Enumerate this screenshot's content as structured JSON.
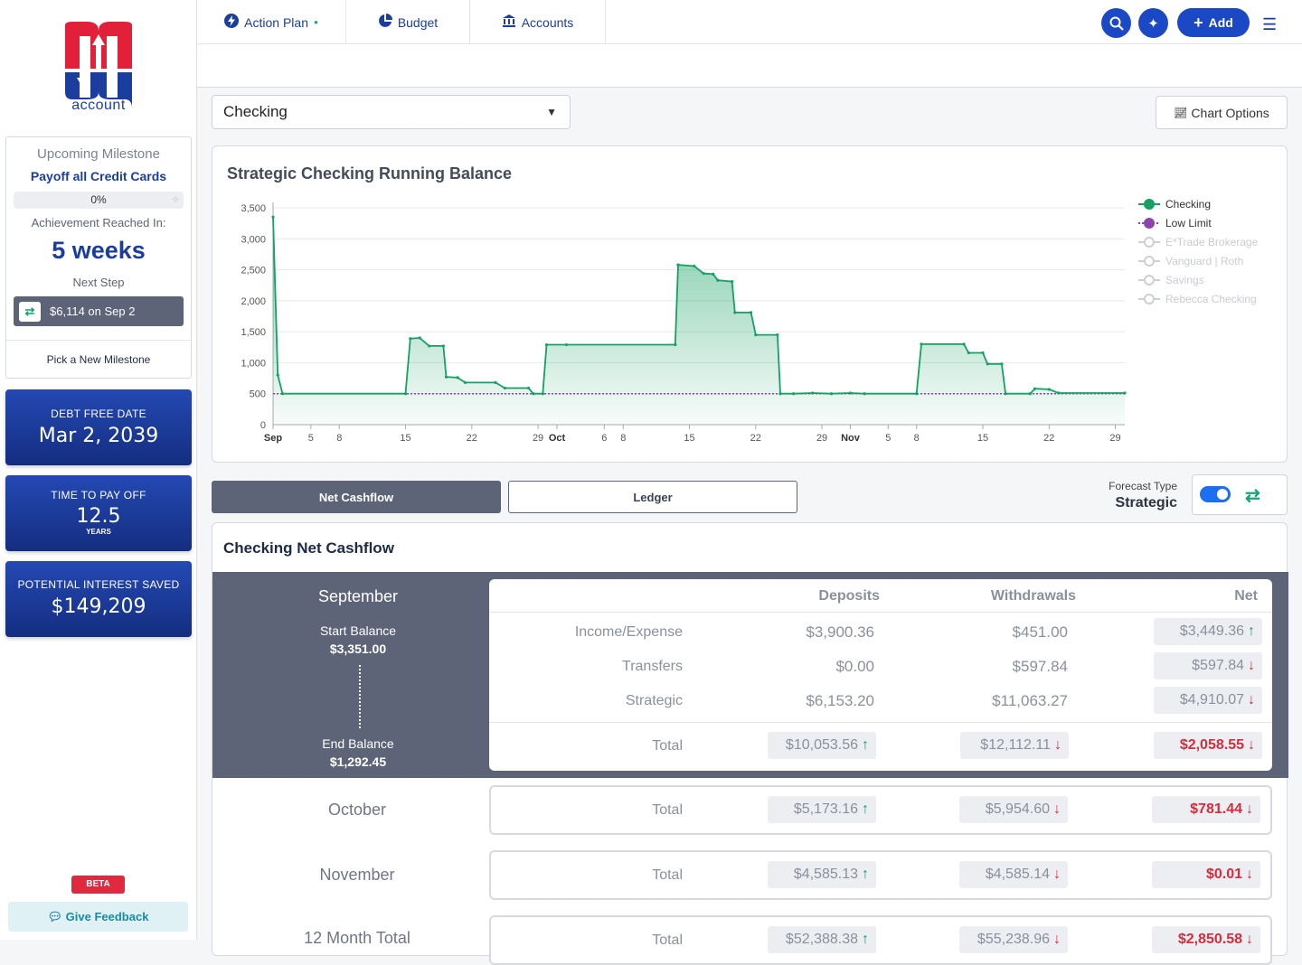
{
  "brand": {
    "logo_text": "account"
  },
  "milestone": {
    "title": "Upcoming Milestone",
    "name": "Payoff all Credit Cards",
    "progress_label": "0%",
    "progress": 0,
    "reach_label": "Achievement Reached In:",
    "reach_value": "5 weeks",
    "next_label": "Next Step",
    "next_step": "$6,114 on Sep 2",
    "pick": "Pick a New Milestone"
  },
  "stats": {
    "debt_free_label": "DEBT FREE DATE",
    "debt_free_value": "Mar 2, 2039",
    "payoff_label": "TIME TO PAY OFF",
    "payoff_value": "12.5",
    "payoff_unit": "YEARS",
    "interest_label": "POTENTIAL INTEREST SAVED",
    "interest_value": "$149,209"
  },
  "badges": {
    "beta": "BETA",
    "feedback": "Give Feedback"
  },
  "nav": {
    "tabs": [
      {
        "label": "Action Plan",
        "icon": "bolt-icon"
      },
      {
        "label": "Budget",
        "icon": "pie-chart-icon"
      },
      {
        "label": "Accounts",
        "icon": "bank-icon"
      }
    ],
    "add_label": "Add"
  },
  "account_select": {
    "value": "Checking"
  },
  "chart_options_label": "Chart Options",
  "chart_data": {
    "type": "area",
    "title": "Strategic Checking Running Balance",
    "ylim": [
      0,
      3500
    ],
    "yticks": [
      0,
      500,
      1000,
      1500,
      2000,
      2500,
      3000,
      3500
    ],
    "xticks": [
      {
        "day": 0,
        "label": "Sep",
        "bold": true
      },
      {
        "day": 4,
        "label": "5"
      },
      {
        "day": 7,
        "label": "8"
      },
      {
        "day": 14,
        "label": "15"
      },
      {
        "day": 21,
        "label": "22"
      },
      {
        "day": 28,
        "label": "29"
      },
      {
        "day": 30,
        "label": "Oct",
        "bold": true
      },
      {
        "day": 35,
        "label": "6"
      },
      {
        "day": 37,
        "label": "8"
      },
      {
        "day": 44,
        "label": "15"
      },
      {
        "day": 51,
        "label": "22"
      },
      {
        "day": 58,
        "label": "29"
      },
      {
        "day": 61,
        "label": "Nov",
        "bold": true
      },
      {
        "day": 65,
        "label": "5"
      },
      {
        "day": 68,
        "label": "8"
      },
      {
        "day": 75,
        "label": "15"
      },
      {
        "day": 82,
        "label": "22"
      },
      {
        "day": 89,
        "label": "29"
      }
    ],
    "x_days": 90,
    "series": [
      {
        "name": "Checking",
        "color": "#16a064",
        "values": [
          [
            0,
            3351
          ],
          [
            0.5,
            800
          ],
          [
            1,
            500
          ],
          [
            14,
            500
          ],
          [
            14.5,
            1390
          ],
          [
            15.5,
            1400
          ],
          [
            16.5,
            1270
          ],
          [
            18,
            1270
          ],
          [
            18.3,
            770
          ],
          [
            19.5,
            760
          ],
          [
            20.3,
            680
          ],
          [
            23.5,
            680
          ],
          [
            24.5,
            590
          ],
          [
            27,
            590
          ],
          [
            27.5,
            500
          ],
          [
            28.5,
            500
          ],
          [
            28.9,
            1290
          ],
          [
            31,
            1290
          ],
          [
            42.5,
            1290
          ],
          [
            42.8,
            2580
          ],
          [
            44.5,
            2560
          ],
          [
            45.5,
            2440
          ],
          [
            46.5,
            2430
          ],
          [
            47,
            2330
          ],
          [
            48.5,
            2310
          ],
          [
            48.8,
            1810
          ],
          [
            50.5,
            1810
          ],
          [
            51,
            1450
          ],
          [
            53.3,
            1450
          ],
          [
            53.6,
            500
          ],
          [
            55,
            500
          ],
          [
            57,
            510
          ],
          [
            59,
            500
          ],
          [
            61,
            510
          ],
          [
            62.5,
            500
          ],
          [
            68,
            500
          ],
          [
            68.5,
            1300
          ],
          [
            73,
            1300
          ],
          [
            73.5,
            1160
          ],
          [
            75,
            1160
          ],
          [
            75.5,
            980
          ],
          [
            77,
            980
          ],
          [
            77.4,
            500
          ],
          [
            80,
            500
          ],
          [
            80.5,
            580
          ],
          [
            82,
            570
          ],
          [
            83,
            510
          ],
          [
            90,
            510
          ]
        ]
      },
      {
        "name": "Low Limit",
        "color": "#8e44ad",
        "values": [
          [
            0,
            500
          ],
          [
            90,
            500
          ]
        ]
      }
    ],
    "legend": [
      "Checking",
      "Low Limit",
      "E*Trade Brokerage",
      "Vanguard | Roth",
      "Savings",
      "Rebecca Checking"
    ],
    "legend_position": "right"
  },
  "view_toggle": {
    "net_cashflow": "Net Cashflow",
    "ledger": "Ledger"
  },
  "forecast": {
    "label": "Forecast Type",
    "value": "Strategic"
  },
  "cashflow": {
    "title": "Checking Net Cashflow",
    "headers": {
      "deposits": "Deposits",
      "withdrawals": "Withdrawals",
      "net": "Net"
    },
    "september": {
      "name": "September",
      "start_label": "Start Balance",
      "start_value": "$3,351.00",
      "end_label": "End Balance",
      "end_value": "$1,292.45",
      "rows": [
        {
          "label": "Income/Expense",
          "deposits": "$3,900.36",
          "withdrawals": "$451.00",
          "net": "$3,449.36",
          "dir": "up"
        },
        {
          "label": "Transfers",
          "deposits": "$0.00",
          "withdrawals": "$597.84",
          "net": "$597.84",
          "dir": "down"
        },
        {
          "label": "Strategic",
          "deposits": "$6,153.20",
          "withdrawals": "$11,063.27",
          "net": "$4,910.07",
          "dir": "down"
        }
      ],
      "total": {
        "label": "Total",
        "deposits": "$10,053.56",
        "withdrawals": "$12,112.11",
        "net": "$2,058.55"
      }
    },
    "months": [
      {
        "name": "October",
        "label": "Total",
        "deposits": "$5,173.16",
        "withdrawals": "$5,954.60",
        "net": "$781.44"
      },
      {
        "name": "November",
        "label": "Total",
        "deposits": "$4,585.13",
        "withdrawals": "$4,585.14",
        "net": "$0.01"
      },
      {
        "name": "12 Month Total",
        "label": "Total",
        "deposits": "$52,388.38",
        "withdrawals": "$55,238.96",
        "net": "$2,850.58"
      }
    ]
  }
}
